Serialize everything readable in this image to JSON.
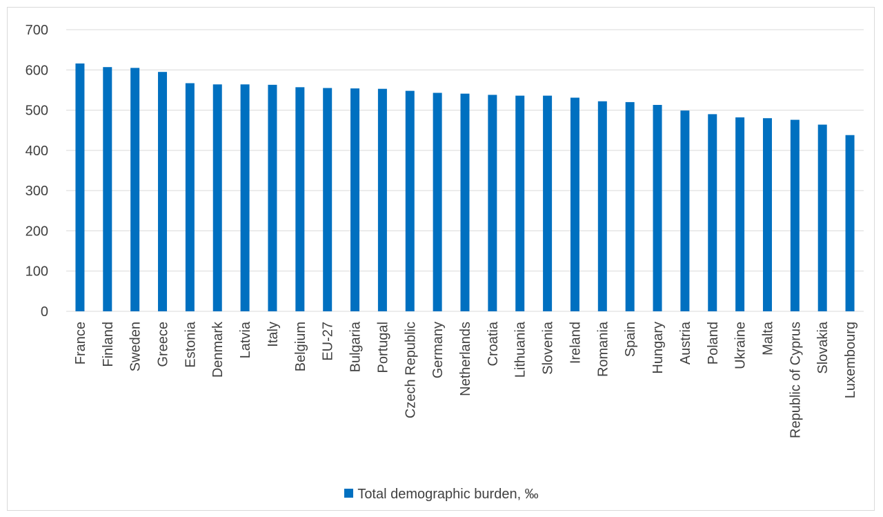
{
  "chart_data": {
    "type": "bar",
    "title": "",
    "xlabel": "",
    "ylabel": "",
    "ylim": [
      0,
      700
    ],
    "yticks": [
      0,
      100,
      200,
      300,
      400,
      500,
      600,
      700
    ],
    "grid": true,
    "legend_position": "bottom",
    "categories": [
      "France",
      "Finland",
      "Sweden",
      "Greece",
      "Estonia",
      "Denmark",
      "Latvia",
      "Italy",
      "Belgium",
      "EU-27",
      "Bulgaria",
      "Portugal",
      "Czech Republic",
      "Germany",
      "Netherlands",
      "Croatia",
      "Lithuania",
      "Slovenia",
      "Ireland",
      "Romania",
      "Spain",
      "Hungary",
      "Austria",
      "Poland",
      "Ukraine",
      "Malta",
      "Republic of Cyprus",
      "Slovakia",
      "Luxembourg"
    ],
    "series": [
      {
        "name": "Total demographic burden, ‰",
        "color": "#0070c0",
        "values": [
          616,
          607,
          605,
          595,
          567,
          564,
          564,
          563,
          557,
          555,
          554,
          553,
          548,
          543,
          541,
          538,
          536,
          536,
          531,
          522,
          520,
          513,
          499,
          490,
          482,
          480,
          476,
          464,
          438
        ]
      }
    ]
  },
  "colors": {
    "bar": "#0070c0",
    "grid": "#d9d9d9",
    "text": "#404040"
  }
}
